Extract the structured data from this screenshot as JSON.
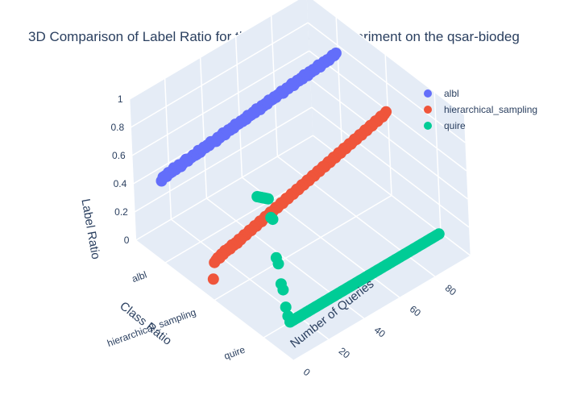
{
  "chart_data": {
    "type": "scatter",
    "title": "3D Comparison of Label Ratio for the AL Methods experiment on the qsar-biodeg",
    "axes": {
      "x": {
        "label": "Number of Queries",
        "ticks": [
          0,
          20,
          40,
          60,
          80
        ],
        "range": [
          0,
          100
        ]
      },
      "y": {
        "label": "Class Ratio",
        "categories": [
          "albl",
          "hierarchical_sampling",
          "quire"
        ]
      },
      "z": {
        "label": "Label Ratio",
        "ticks": [
          0,
          0.2,
          0.4,
          0.6,
          0.8,
          1
        ],
        "range": [
          0,
          1
        ]
      }
    },
    "legend_position": "top-right",
    "grid": true,
    "series": [
      {
        "name": "albl",
        "color": "#636efa",
        "category": "albl",
        "x": [
          0,
          1,
          2,
          3,
          4,
          5,
          6,
          7,
          8,
          9,
          10,
          11,
          12,
          13,
          14,
          15,
          16,
          17,
          18,
          19,
          20,
          21,
          22,
          23,
          24,
          25,
          26,
          27,
          28,
          29,
          30,
          31,
          32,
          33,
          34,
          35,
          36,
          37,
          38,
          39,
          40,
          41,
          42,
          43,
          44,
          45,
          46,
          47,
          48,
          49,
          50,
          51,
          52,
          53,
          54,
          55,
          56,
          57,
          58,
          59,
          60,
          61,
          62,
          63,
          64,
          65,
          66,
          67,
          68,
          69,
          70,
          71,
          72,
          73,
          74,
          75,
          76,
          77,
          78,
          79,
          80,
          81,
          82,
          83,
          84,
          85,
          86,
          87,
          88,
          89,
          90,
          91,
          92,
          93,
          94,
          95,
          96,
          97,
          98,
          99
        ],
        "y": [
          0.58,
          0.6,
          0.6,
          0.59,
          0.61,
          0.6,
          0.6,
          0.62,
          0.6,
          0.61,
          0.62,
          0.6,
          0.61,
          0.62,
          0.63,
          0.61,
          0.62,
          0.62,
          0.63,
          0.62,
          0.62,
          0.64,
          0.62,
          0.63,
          0.64,
          0.63,
          0.64,
          0.63,
          0.65,
          0.64,
          0.64,
          0.63,
          0.65,
          0.64,
          0.65,
          0.66,
          0.64,
          0.65,
          0.66,
          0.65,
          0.66,
          0.65,
          0.67,
          0.66,
          0.66,
          0.67,
          0.66,
          0.67,
          0.66,
          0.68,
          0.67,
          0.67,
          0.68,
          0.67,
          0.69,
          0.68,
          0.67,
          0.69,
          0.68,
          0.69,
          0.68,
          0.7,
          0.69,
          0.69,
          0.7,
          0.69,
          0.7,
          0.7,
          0.71,
          0.69,
          0.7,
          0.71,
          0.7,
          0.71,
          0.72,
          0.7,
          0.71,
          0.72,
          0.71,
          0.72,
          0.71,
          0.73,
          0.72,
          0.71,
          0.73,
          0.72,
          0.73,
          0.72,
          0.73,
          0.74,
          0.72,
          0.73,
          0.74,
          0.73,
          0.74,
          0.73,
          0.74,
          0.75,
          0.74,
          0.75
        ]
      },
      {
        "name": "hierarchical_sampling",
        "color": "#ef553b",
        "category": "hierarchical_sampling",
        "x": [
          0,
          1,
          2,
          3,
          4,
          5,
          6,
          7,
          8,
          9,
          10,
          11,
          12,
          13,
          14,
          15,
          16,
          17,
          18,
          19,
          20,
          21,
          22,
          23,
          24,
          25,
          26,
          27,
          28,
          29,
          30,
          31,
          32,
          33,
          34,
          35,
          36,
          37,
          38,
          39,
          40,
          41,
          42,
          43,
          44,
          45,
          46,
          47,
          48,
          49,
          50,
          51,
          52,
          53,
          54,
          55,
          56,
          57,
          58,
          59,
          60,
          61,
          62,
          63,
          64,
          65,
          66,
          67,
          68,
          69,
          70,
          71,
          72,
          73,
          74,
          75,
          76,
          77,
          78,
          79,
          80,
          81,
          82,
          83,
          84,
          85,
          86,
          87,
          88,
          89,
          90,
          91,
          92,
          93,
          94,
          95,
          96,
          97,
          98,
          99
        ],
        "y": [
          0.15,
          0.26,
          0.27,
          0.28,
          0.27,
          0.29,
          0.28,
          0.3,
          0.29,
          0.3,
          0.29,
          0.31,
          0.3,
          0.31,
          0.3,
          0.32,
          0.31,
          0.32,
          0.33,
          0.32,
          0.33,
          0.34,
          0.33,
          0.34,
          0.35,
          0.34,
          0.35,
          0.36,
          0.35,
          0.36,
          0.37,
          0.36,
          0.37,
          0.38,
          0.37,
          0.38,
          0.39,
          0.38,
          0.39,
          0.4,
          0.39,
          0.4,
          0.41,
          0.4,
          0.41,
          0.42,
          0.41,
          0.42,
          0.43,
          0.42,
          0.43,
          0.44,
          0.43,
          0.44,
          0.45,
          0.44,
          0.45,
          0.46,
          0.45,
          0.46,
          0.47,
          0.46,
          0.47,
          0.48,
          0.47,
          0.48,
          0.49,
          0.48,
          0.49,
          0.5,
          0.49,
          0.5,
          0.51,
          0.5,
          0.51,
          0.52,
          0.51,
          0.52,
          0.53,
          0.52,
          0.53,
          0.54,
          0.53,
          0.54,
          0.55,
          0.54,
          0.55,
          0.56,
          0.55,
          0.56,
          0.57,
          0.56,
          0.57,
          0.58,
          0.57,
          0.58,
          0.59,
          0.58,
          0.59,
          0.6
        ]
      },
      {
        "name": "quire",
        "color": "#00cc96",
        "category": "quire",
        "x": [
          0,
          1,
          2,
          3,
          4,
          5,
          6,
          7,
          8,
          9,
          10,
          11,
          12,
          13,
          14,
          15,
          16,
          17,
          18,
          19,
          20,
          21,
          22,
          23,
          24,
          25,
          26,
          27,
          28,
          29,
          30,
          31,
          32,
          33,
          34,
          35,
          36,
          37,
          38,
          39,
          40,
          41,
          42,
          43,
          44,
          45,
          46,
          47,
          48,
          49,
          50,
          51,
          52,
          53,
          54,
          55,
          56,
          57,
          58,
          59,
          60,
          61,
          62,
          63,
          64,
          65,
          66,
          67,
          68,
          69,
          70,
          71,
          72,
          73,
          74,
          75,
          76,
          77,
          78,
          79,
          80,
          81,
          82,
          83,
          84,
          85,
          86,
          87,
          88,
          89,
          90,
          91,
          92,
          93,
          94,
          95,
          96,
          97,
          98,
          99
        ],
        "y": [
          1,
          0.99,
          0.98,
          0.97,
          0.96,
          0.95,
          0.94,
          0.8,
          0.78,
          0.5,
          0.45,
          0.3,
          0.25,
          0.12,
          0.05,
          0,
          0,
          0,
          0,
          0,
          0,
          0,
          0,
          0,
          0,
          0,
          0,
          0,
          0,
          0,
          0,
          0,
          0,
          0,
          0,
          0,
          0,
          0,
          0,
          0,
          0,
          0,
          0,
          0,
          0,
          0,
          0,
          0,
          0,
          0,
          0,
          0,
          0,
          0,
          0,
          0,
          0,
          0,
          0,
          0,
          0,
          0,
          0,
          0,
          0,
          0,
          0,
          0,
          0,
          0,
          0,
          0,
          0,
          0,
          0,
          0,
          0,
          0,
          0,
          0,
          0,
          0,
          0,
          0,
          0,
          0,
          0,
          0,
          0,
          0,
          0,
          0,
          0,
          0,
          0,
          0,
          0,
          0,
          0,
          0
        ]
      }
    ]
  }
}
